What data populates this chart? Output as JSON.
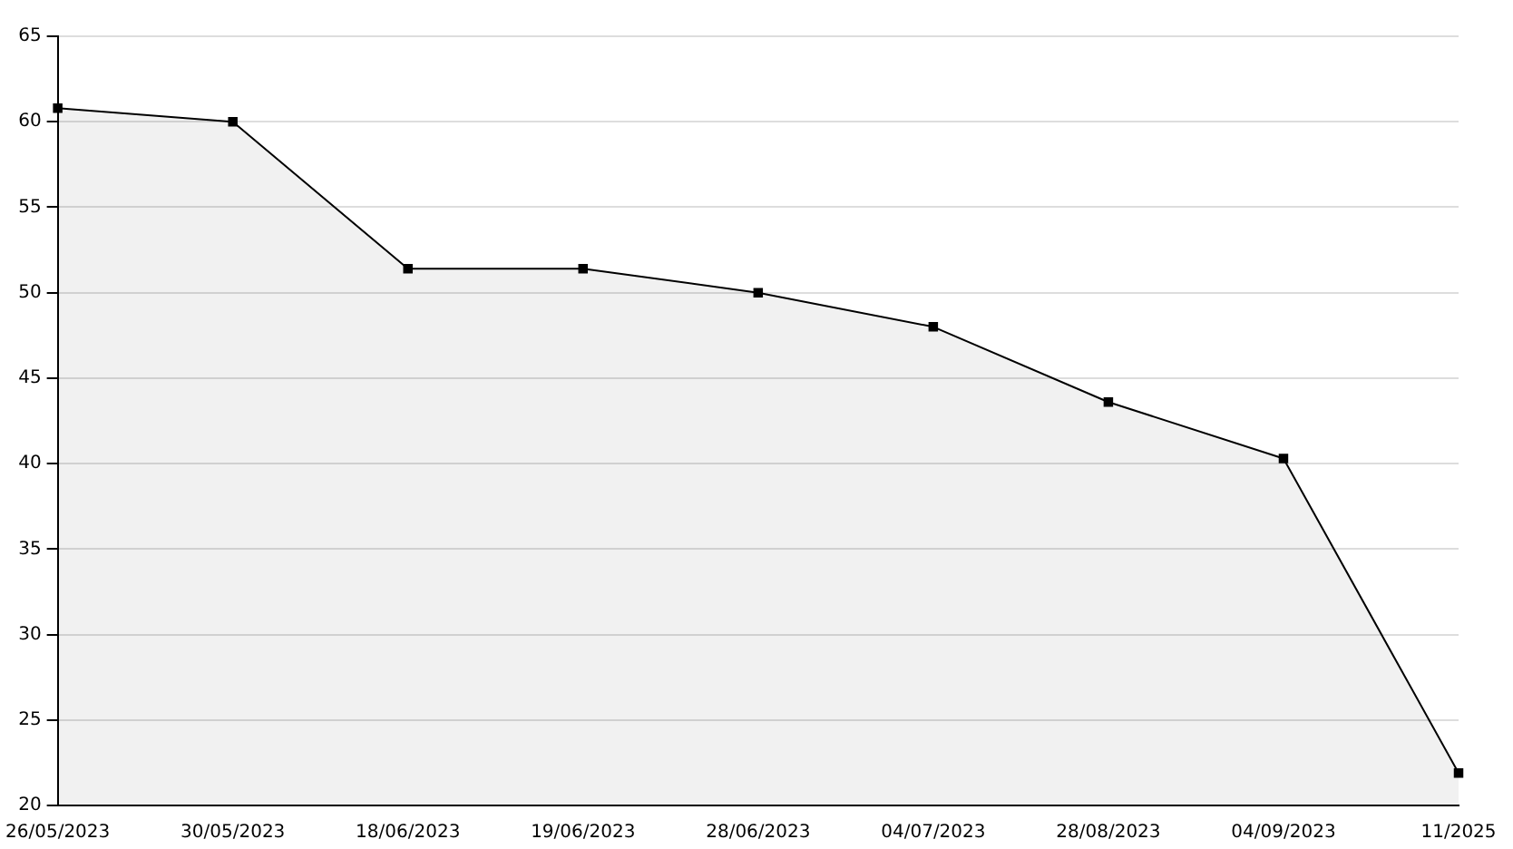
{
  "chart_data": {
    "type": "area",
    "categories": [
      "26/05/2023",
      "30/05/2023",
      "18/06/2023",
      "19/06/2023",
      "28/06/2023",
      "04/07/2023",
      "28/08/2023",
      "04/09/2023",
      "11/2025"
    ],
    "series": [
      {
        "color": "#000000",
        "values": [
          60.8,
          60,
          51.4,
          51.4,
          50,
          48,
          43.6,
          40.3,
          21.9
        ]
      }
    ],
    "ylim": [
      20,
      65
    ],
    "yticks": [
      20,
      25,
      30,
      35,
      40,
      45,
      50,
      55,
      60,
      65
    ],
    "grid": "y",
    "legend": false,
    "marker": "square",
    "line_style": "solid"
  }
}
